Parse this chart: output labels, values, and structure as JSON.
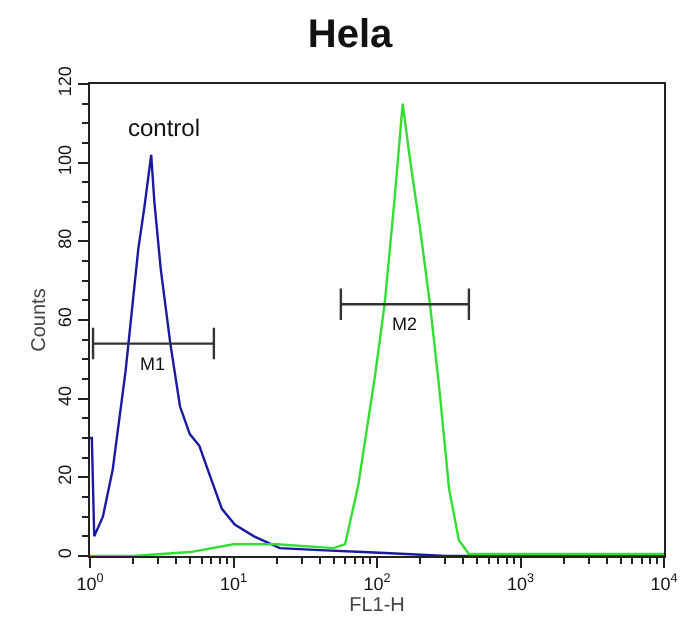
{
  "chart_data": {
    "type": "line",
    "title": "Hela",
    "xlabel": "FL1-H",
    "ylabel": "Counts",
    "log": "x",
    "grid": false,
    "marker": "none",
    "line_style": "solid",
    "xlim": [
      1,
      10000
    ],
    "xticks": [
      {
        "value": 1,
        "label": "10$^{0}$"
      },
      {
        "value": 10,
        "label": "10$^{1}$"
      },
      {
        "value": 100,
        "label": "10$^{2}$"
      },
      {
        "value": 1000,
        "label": "10$^{3}$"
      },
      {
        "value": 10000,
        "label": "10$^{4}$"
      }
    ],
    "ylim": [
      0,
      120
    ],
    "yticks": [
      0,
      20,
      40,
      60,
      80,
      100,
      120
    ],
    "series": [
      {
        "name": "control",
        "color": "#1a1aa0",
        "x": [
          1,
          1.03,
          1.07,
          1.23,
          1.44,
          1.77,
          2.17,
          2.4,
          2.67,
          2.81,
          3.11,
          3.63,
          4.24,
          4.96,
          5.78,
          6.76,
          8.3,
          10.2,
          13.9,
          21,
          40,
          80,
          160,
          300,
          1000,
          10000
        ],
        "values": [
          30,
          30,
          5,
          10,
          22,
          47,
          78,
          89,
          102,
          90,
          73,
          54,
          38,
          31,
          28,
          21,
          12,
          8,
          5,
          2,
          1.5,
          1,
          0.5,
          0,
          0,
          0
        ]
      },
      {
        "color": "#33dd33",
        "x": [
          1,
          2,
          5,
          10,
          20,
          50,
          60,
          74,
          97,
          113,
          132,
          151,
          171,
          200,
          234,
          271,
          318,
          372,
          437,
          1000,
          10000
        ],
        "values": [
          0,
          0,
          1,
          3,
          3,
          2,
          3,
          18,
          46,
          64,
          90,
          115,
          100,
          83,
          64,
          43,
          17,
          4,
          0.5,
          0.5,
          0.5
        ]
      },
      {
        "name": "M1",
        "color": "#333333",
        "x": [
          1.05,
          1.05,
          1.05,
          7.3,
          7.3,
          7.3
        ],
        "values": [
          58,
          50,
          54,
          54,
          58,
          50
        ]
      },
      {
        "name": "M2",
        "color": "#333333",
        "x": [
          56,
          56,
          56,
          437,
          437,
          437
        ],
        "values": [
          68,
          60,
          64,
          64,
          68,
          60
        ]
      }
    ]
  }
}
